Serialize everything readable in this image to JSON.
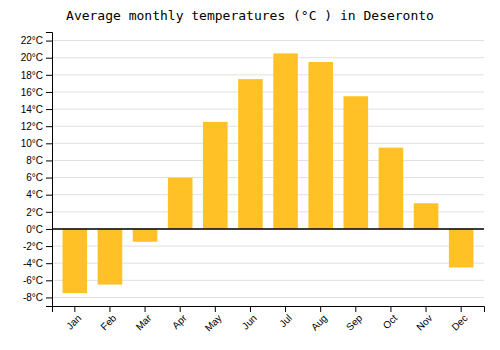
{
  "chart_data": {
    "type": "bar",
    "title": "Average monthly temperatures (°C ) in Deseronto",
    "categories": [
      "Jan",
      "Feb",
      "Mar",
      "Apr",
      "May",
      "Jun",
      "Jul",
      "Aug",
      "Sep",
      "Oct",
      "Nov",
      "Dec"
    ],
    "values": [
      -7.5,
      -6.5,
      -1.5,
      6.0,
      12.5,
      17.5,
      20.5,
      19.5,
      15.5,
      9.5,
      3.0,
      -4.5
    ],
    "color": "#FFC125",
    "ylim": [
      -9,
      23
    ],
    "yticks": [
      {
        "value": -8,
        "label": "-8°C"
      },
      {
        "value": -6,
        "label": "-6°C"
      },
      {
        "value": -4,
        "label": "-4°C"
      },
      {
        "value": -2,
        "label": "-2°C"
      },
      {
        "value": 0,
        "label": "0°C"
      },
      {
        "value": 2,
        "label": "2°C"
      },
      {
        "value": 4,
        "label": "4°C"
      },
      {
        "value": 6,
        "label": "6°C"
      },
      {
        "value": 8,
        "label": "8°C"
      },
      {
        "value": 10,
        "label": "10°C"
      },
      {
        "value": 12,
        "label": "12°C"
      },
      {
        "value": 14,
        "label": "14°C"
      },
      {
        "value": 16,
        "label": "16°C"
      },
      {
        "value": 18,
        "label": "18°C"
      },
      {
        "value": 20,
        "label": "20°C"
      },
      {
        "value": 22,
        "label": "22°C"
      }
    ],
    "grid": true
  }
}
